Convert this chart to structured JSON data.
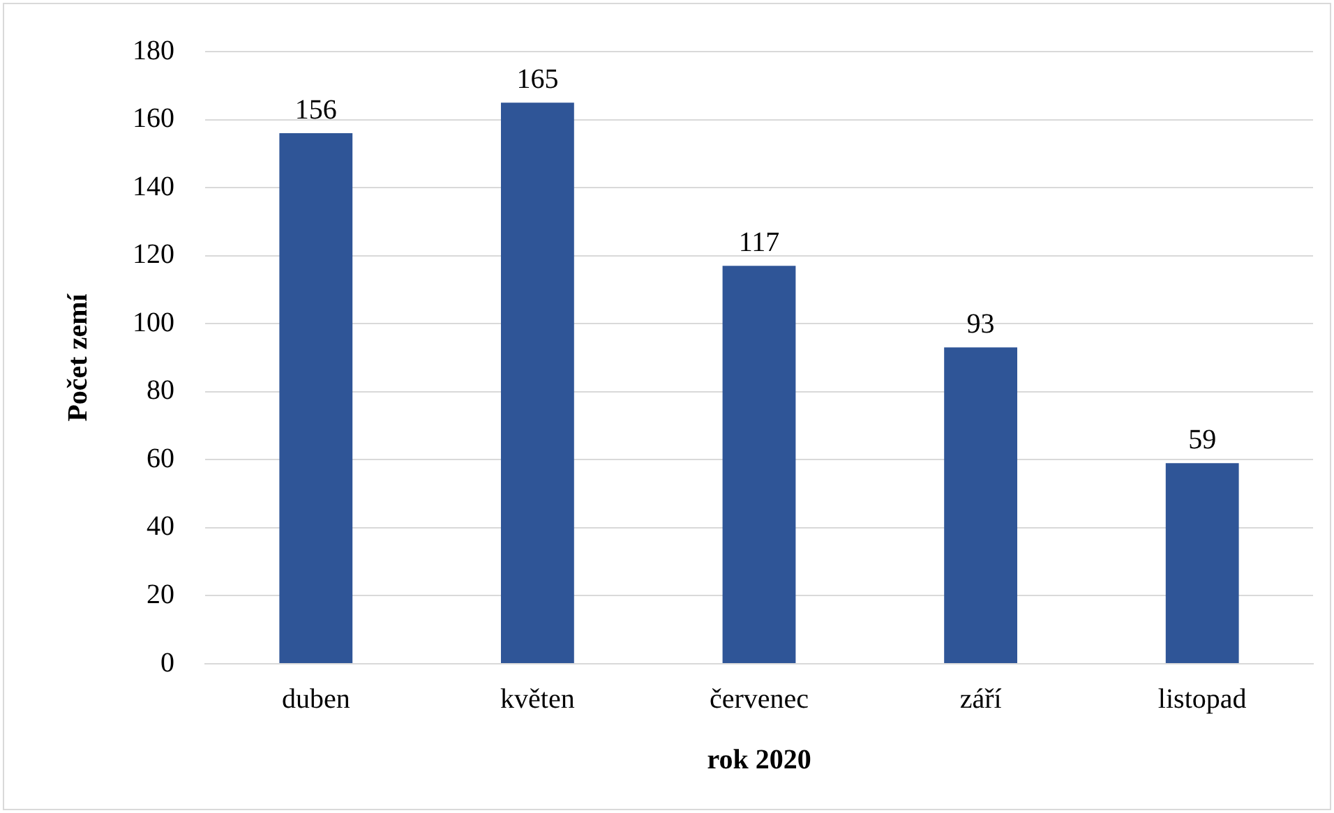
{
  "chart_data": {
    "type": "bar",
    "xlabel": "rok 2020",
    "ylabel": "Počet zemí",
    "categories": [
      "duben",
      "květen",
      "červenec",
      "září",
      "listopad"
    ],
    "values": [
      156,
      165,
      117,
      93,
      59
    ],
    "color": "#2f5597",
    "ylim": [
      0,
      180
    ],
    "yticks": [
      0,
      20,
      40,
      60,
      80,
      100,
      120,
      140,
      160,
      180
    ],
    "grid": "y",
    "data_labels": true,
    "legend": false
  }
}
